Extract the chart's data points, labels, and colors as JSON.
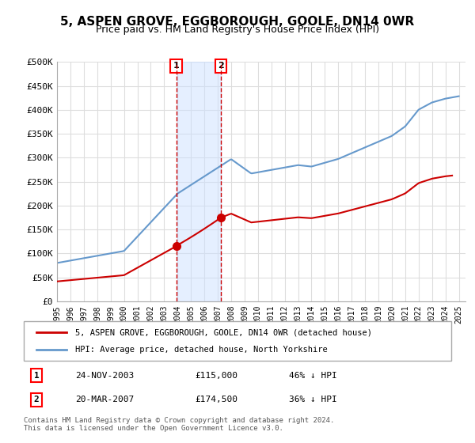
{
  "title": "5, ASPEN GROVE, EGGBOROUGH, GOOLE, DN14 0WR",
  "subtitle": "Price paid vs. HM Land Registry's House Price Index (HPI)",
  "title_fontsize": 11,
  "subtitle_fontsize": 9,
  "background_color": "#ffffff",
  "plot_bg_color": "#ffffff",
  "grid_color": "#dddddd",
  "ylabel_ticks": [
    "£0",
    "£50K",
    "£100K",
    "£150K",
    "£200K",
    "£250K",
    "£300K",
    "£350K",
    "£400K",
    "£450K",
    "£500K"
  ],
  "ytick_values": [
    0,
    50000,
    100000,
    150000,
    200000,
    250000,
    300000,
    350000,
    400000,
    450000,
    500000
  ],
  "ylim": [
    0,
    500000
  ],
  "xlim_start": 1995.0,
  "xlim_end": 2025.5,
  "xtick_years": [
    1995,
    1996,
    1997,
    1998,
    1999,
    2000,
    2001,
    2002,
    2003,
    2004,
    2005,
    2006,
    2007,
    2008,
    2009,
    2010,
    2011,
    2012,
    2013,
    2014,
    2015,
    2016,
    2017,
    2018,
    2019,
    2020,
    2021,
    2022,
    2023,
    2024,
    2025
  ],
  "hpi_color": "#6699cc",
  "sale_color": "#cc0000",
  "sale1_x": 2003.9,
  "sale1_y": 115000,
  "sale1_label": "1",
  "sale1_date": "24-NOV-2003",
  "sale1_price": "£115,000",
  "sale1_pct": "46% ↓ HPI",
  "sale2_x": 2007.22,
  "sale2_y": 174500,
  "sale2_label": "2",
  "sale2_date": "20-MAR-2007",
  "sale2_price": "£174,500",
  "sale2_pct": "36% ↓ HPI",
  "shade_x1": 2004.0,
  "shade_x2": 2007.25,
  "legend_line1": "5, ASPEN GROVE, EGGBOROUGH, GOOLE, DN14 0WR (detached house)",
  "legend_line2": "HPI: Average price, detached house, North Yorkshire",
  "footer": "Contains HM Land Registry data © Crown copyright and database right 2024.\nThis data is licensed under the Open Government Licence v3.0.",
  "table_rows": [
    {
      "label": "1",
      "date": "24-NOV-2003",
      "price": "£115,000",
      "pct": "46% ↓ HPI"
    },
    {
      "label": "2",
      "date": "20-MAR-2007",
      "price": "£174,500",
      "pct": "36% ↓ HPI"
    }
  ]
}
